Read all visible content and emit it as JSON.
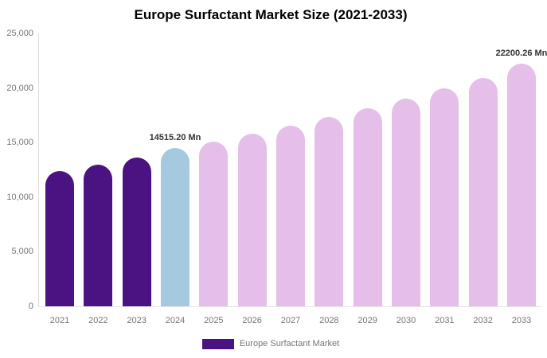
{
  "chart_data": {
    "type": "bar",
    "title": "Europe Surfactant Market Size (2021-2033)",
    "xlabel": "",
    "ylabel": "",
    "unit": "Mn",
    "categories": [
      "2021",
      "2022",
      "2023",
      "2024",
      "2025",
      "2026",
      "2027",
      "2028",
      "2029",
      "2030",
      "2031",
      "2032",
      "2033"
    ],
    "values": [
      12400,
      12950,
      13650,
      14515.2,
      15100,
      15800,
      16550,
      17350,
      18150,
      19000,
      19950,
      20950,
      22200.26
    ],
    "bar_roles": [
      "historical",
      "historical",
      "historical",
      "current",
      "forecast",
      "forecast",
      "forecast",
      "forecast",
      "forecast",
      "forecast",
      "forecast",
      "forecast",
      "forecast"
    ],
    "colors": {
      "historical": "#4A1381",
      "current": "#A5CAE0",
      "forecast": "#E5BEE9"
    },
    "ylim": [
      0,
      25000
    ],
    "y_ticks": [
      {
        "value": 0,
        "label": "0"
      },
      {
        "value": 5000,
        "label": "5,000"
      },
      {
        "value": 10000,
        "label": "10,000"
      },
      {
        "value": 15000,
        "label": "15,000"
      },
      {
        "value": 20000,
        "label": "20,000"
      },
      {
        "value": 25000,
        "label": "25,000"
      }
    ],
    "annotations": [
      {
        "category": "2024",
        "text": "14515.20 Mn"
      },
      {
        "category": "2033",
        "text": "22200.26 Mn"
      }
    ],
    "grid": false,
    "legend": {
      "position": "bottom",
      "label": "Europe Surfactant Market",
      "swatch_color": "#4A1381"
    },
    "style": {
      "axis_line_color": "#dddddd",
      "baseline_color": "#e5e5e5",
      "tick_label_color": "#757575",
      "annotation_color": "#333333",
      "title_color": "#000000",
      "background": "#ffffff"
    }
  }
}
